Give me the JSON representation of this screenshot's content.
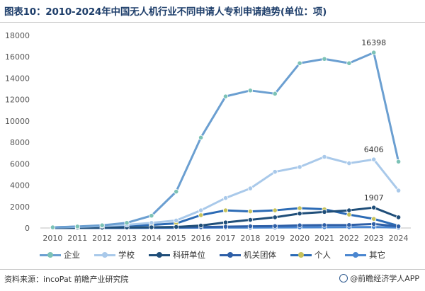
{
  "header": {
    "title": "图表10：2010-2024年中国无人机行业不同申请人专利申请趋势(单位：项)"
  },
  "chart_data": {
    "type": "line",
    "title": "图表10：2010-2024年中国无人机行业不同申请人专利申请趋势(单位：项)",
    "xlabel": "",
    "ylabel": "",
    "ylim": [
      0,
      18000
    ],
    "yticks": [
      0,
      2000,
      4000,
      6000,
      8000,
      10000,
      12000,
      14000,
      16000,
      18000
    ],
    "grid": false,
    "legend_position": "bottom",
    "categories": [
      "2010",
      "2011",
      "2012",
      "2013",
      "2014",
      "2015",
      "2016",
      "2017",
      "2018",
      "2019",
      "2020",
      "2021",
      "2022",
      "2023",
      "2024"
    ],
    "series": [
      {
        "name": "企业",
        "color": "#6b9fd1",
        "marker": "#7cc2b6",
        "values": [
          60,
          140,
          250,
          480,
          1150,
          3400,
          8450,
          12300,
          12850,
          12550,
          15400,
          15800,
          15400,
          16398,
          6200
        ]
      },
      {
        "name": "学校",
        "color": "#a9c9ea",
        "marker": "#a9c9ea",
        "values": [
          50,
          110,
          190,
          300,
          480,
          700,
          1650,
          2800,
          3700,
          5250,
          5700,
          6650,
          6050,
          6406,
          3500
        ]
      },
      {
        "name": "科研单位",
        "color": "#1f4e79",
        "marker": "#1f4e79",
        "values": [
          10,
          20,
          30,
          50,
          70,
          100,
          230,
          520,
          760,
          1000,
          1350,
          1500,
          1650,
          1907,
          1000
        ]
      },
      {
        "name": "机关团体",
        "color": "#2e5fa7",
        "marker": "#2e5fa7",
        "values": [
          5,
          10,
          15,
          20,
          30,
          50,
          80,
          120,
          160,
          180,
          250,
          270,
          280,
          370,
          150
        ]
      },
      {
        "name": "个人",
        "color": "#2c6bb5",
        "marker": "#c7c25a",
        "values": [
          60,
          120,
          180,
          230,
          290,
          430,
          1200,
          1650,
          1550,
          1650,
          1850,
          1750,
          1250,
          850,
          200
        ]
      },
      {
        "name": "其它",
        "color": "#4a86d0",
        "marker": "#4a86d0",
        "values": [
          0,
          5,
          10,
          10,
          20,
          20,
          30,
          40,
          40,
          50,
          60,
          70,
          80,
          90,
          40
        ]
      }
    ],
    "annotations": [
      {
        "series": "企业",
        "x": "2023",
        "text": "16398"
      },
      {
        "series": "学校",
        "x": "2023",
        "text": "6406"
      },
      {
        "series": "科研单位",
        "x": "2023",
        "text": "1907"
      }
    ]
  },
  "footer": {
    "source": "资料来源：incoPat 前瞻产业研究院",
    "brand": "@前瞻经济学人APP",
    "brand_icon": "qianzhan-logo-icon"
  }
}
